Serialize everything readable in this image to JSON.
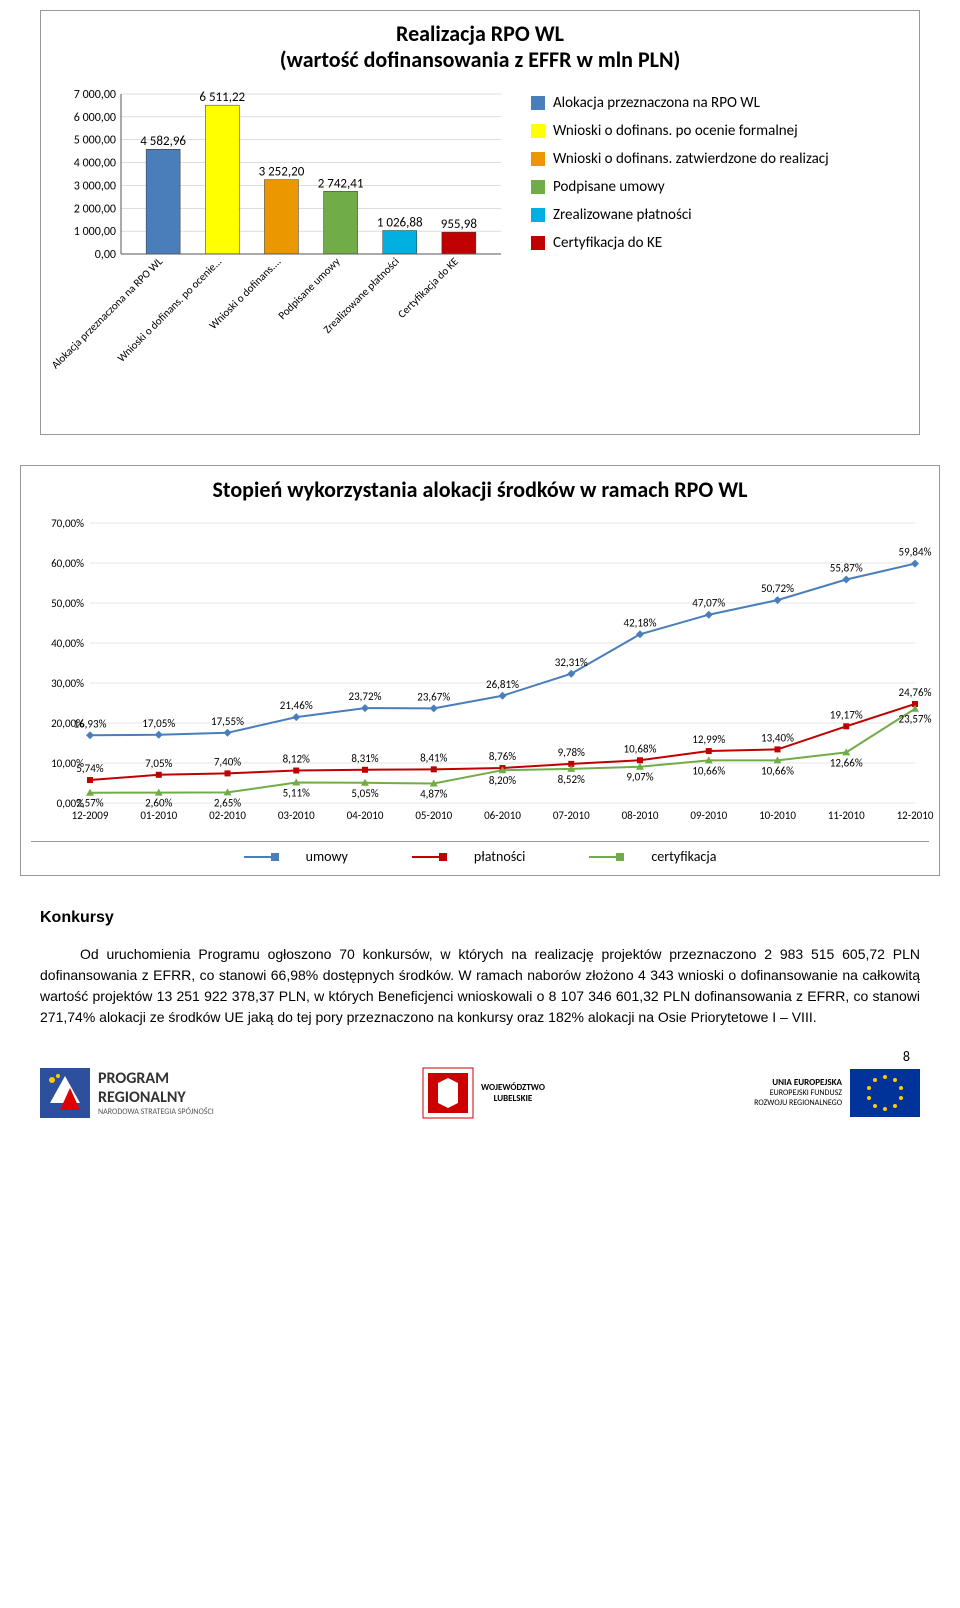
{
  "chart1": {
    "title_l1": "Realizacja RPO WL",
    "title_l2": "(wartość dofinansowania z EFFR w mln PLN)",
    "ymax": 7000,
    "ytick_labels": [
      "0,00",
      "1 000,00",
      "2 000,00",
      "3 000,00",
      "4 000,00",
      "5 000,00",
      "6 000,00",
      "7 000,00"
    ],
    "bars": [
      {
        "label": "Alokacja przeznaczona na RPO WL",
        "value": 4582.96,
        "value_label": "4 582,96",
        "color": "#4a7ebb"
      },
      {
        "label": "Wnioski o dofinans. po ocenie...",
        "value": 6511.22,
        "value_label": "6 511,22",
        "color": "#ffff00"
      },
      {
        "label": "Wnioski o dofinans....",
        "value": 3252.2,
        "value_label": "3 252,20",
        "color": "#eb9800"
      },
      {
        "label": "Podpisane umowy",
        "value": 2742.41,
        "value_label": "2 742,41",
        "color": "#71ad47"
      },
      {
        "label": "Zrealizowane płatności",
        "value": 1026.88,
        "value_label": "1 026,88",
        "color": "#00b0e0"
      },
      {
        "label": "Certyfikacja do KE",
        "value": 955.98,
        "value_label": "955,98",
        "color": "#c00000"
      }
    ],
    "legend": [
      {
        "color": "#4a7ebb",
        "label": "Alokacja przeznaczona na RPO WL"
      },
      {
        "color": "#ffff00",
        "label": "Wnioski o dofinans. po ocenie formalnej"
      },
      {
        "color": "#eb9800",
        "label": "Wnioski o dofinans. zatwierdzone do realizacj"
      },
      {
        "color": "#71ad47",
        "label": "Podpisane umowy"
      },
      {
        "color": "#00b0e0",
        "label": "Zrealizowane płatności"
      },
      {
        "color": "#c00000",
        "label": "Certyfikacja do KE"
      }
    ]
  },
  "chart2": {
    "title": "Stopień wykorzystania alokacji środków w ramach RPO WL",
    "ymax": 70,
    "ytick_labels": [
      "0,00%",
      "10,00%",
      "20,00%",
      "30,00%",
      "40,00%",
      "50,00%",
      "60,00%",
      "70,00%"
    ],
    "x_labels": [
      "12-2009",
      "01-2010",
      "02-2010",
      "03-2010",
      "04-2010",
      "05-2010",
      "06-2010",
      "07-2010",
      "08-2010",
      "09-2010",
      "10-2010",
      "11-2010",
      "12-2010"
    ],
    "series": [
      {
        "name": "umowy",
        "color": "#4a7ebb",
        "marker": "diamond",
        "values": [
          16.93,
          17.05,
          17.55,
          21.46,
          23.72,
          23.67,
          26.81,
          32.31,
          42.18,
          47.07,
          50.72,
          55.87,
          59.84
        ],
        "labels": [
          "16,93%",
          "17,05%",
          "17,55%",
          "21,46%",
          "23,72%",
          "23,67%",
          "26,81%",
          "32,31%",
          "42,18%",
          "47,07%",
          "50,72%",
          "55,87%",
          "59,84%"
        ]
      },
      {
        "name": "płatności",
        "color": "#c00000",
        "marker": "square",
        "values": [
          5.74,
          7.05,
          7.4,
          8.12,
          8.31,
          8.41,
          8.76,
          9.78,
          10.68,
          12.99,
          13.4,
          19.17,
          24.76
        ],
        "labels": [
          "5,74%",
          "7,05%",
          "7,40%",
          "8,12%",
          "8,31%",
          "8,41%",
          "8,76%",
          "9,78%",
          "10,68%",
          "12,99%",
          "13,40%",
          "19,17%",
          "24,76%"
        ]
      },
      {
        "name": "certyfikacja",
        "color": "#71ad47",
        "marker": "triangle",
        "values": [
          2.57,
          2.6,
          2.65,
          5.11,
          5.05,
          4.87,
          8.2,
          8.52,
          9.07,
          10.66,
          10.66,
          12.66,
          23.57
        ],
        "labels": [
          "2,57%",
          "2,60%",
          "2,65%",
          "5,11%",
          "5,05%",
          "4,87%",
          "8,20%",
          "8,52%",
          "9,07%",
          "10,66%",
          "10,66%",
          "12,66%",
          "23,57%"
        ]
      }
    ],
    "legend": [
      {
        "name": "umowy",
        "color": "#4a7ebb"
      },
      {
        "name": "płatności",
        "color": "#c00000"
      },
      {
        "name": "certyfikacja",
        "color": "#71ad47"
      }
    ]
  },
  "body": {
    "heading": "Konkursy",
    "paragraph": "Od uruchomienia Programu ogłoszono 70 konkursów, w których na realizację projektów przeznaczono 2 983 515 605,72 PLN dofinansowania z EFRR, co stanowi 66,98% dostępnych środków. W ramach naborów złożono 4 343 wnioski o dofinansowanie na całkowitą wartość projektów 13 251 922 378,37 PLN, w których Beneficjenci wnioskowali o 8 107 346 601,32 PLN dofinansowania z EFRR, co stanowi 271,74% alokacji ze środków UE jaką do tej pory przeznaczono na konkursy oraz 182% alokacji na Osie Priorytetowe I – VIII."
  },
  "footer": {
    "logo1_l1": "PROGRAM",
    "logo1_l2": "REGIONALNY",
    "logo1_l3": "NARODOWA STRATEGIA SPÓJNOŚCI",
    "logo2_l1": "WOJEWÓDZTWO",
    "logo2_l2": "LUBELSKIE",
    "logo3_l1": "UNIA EUROPEJSKA",
    "logo3_l2": "EUROPEJSKI FUNDUSZ",
    "logo3_l3": "ROZWOJU REGIONALNEGO",
    "page": "8"
  }
}
